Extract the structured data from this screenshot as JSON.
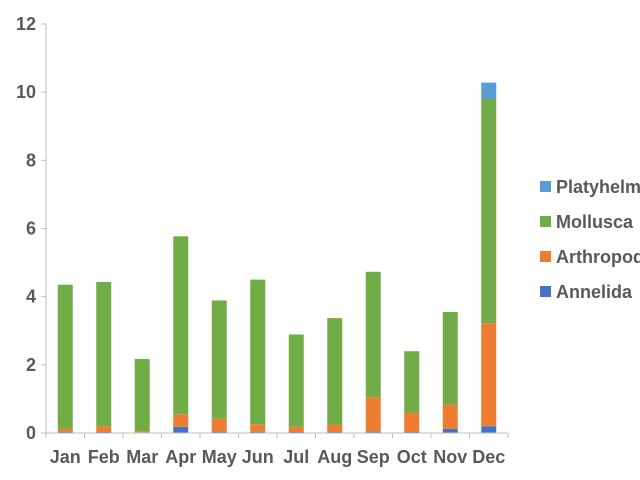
{
  "chart_data": {
    "type": "bar",
    "stacked": true,
    "title": "",
    "xlabel": "",
    "ylabel": "",
    "ylim": [
      0,
      12
    ],
    "yticks": [
      0,
      2,
      4,
      6,
      8,
      10,
      12
    ],
    "grid": false,
    "legend_position": "right",
    "categories": [
      "Jan",
      "Feb",
      "Mar",
      "Apr",
      "May",
      "Jun",
      "Jul",
      "Aug",
      "Sep",
      "Oct",
      "Nov",
      "Dec"
    ],
    "series": [
      {
        "name": "Annelida",
        "color": "#4472C4",
        "values": [
          0.03,
          0.03,
          0.02,
          0.18,
          0.04,
          0.04,
          0.03,
          0.03,
          0.04,
          0.03,
          0.12,
          0.2
        ]
      },
      {
        "name": "Arthropoda",
        "color": "#ED7D31",
        "values": [
          0.09,
          0.17,
          0.03,
          0.37,
          0.38,
          0.22,
          0.15,
          0.22,
          1.01,
          0.57,
          0.71,
          3.02
        ]
      },
      {
        "name": "Mollusca",
        "color": "#70AD47",
        "values": [
          4.23,
          4.23,
          2.12,
          5.22,
          3.47,
          4.24,
          2.71,
          3.12,
          3.68,
          1.8,
          2.72,
          6.58
        ]
      },
      {
        "name": "Platyhelm",
        "color": "#5B9BD5",
        "values": [
          0,
          0,
          0,
          0,
          0,
          0,
          0,
          0,
          0,
          0,
          0,
          0.48
        ]
      }
    ]
  }
}
